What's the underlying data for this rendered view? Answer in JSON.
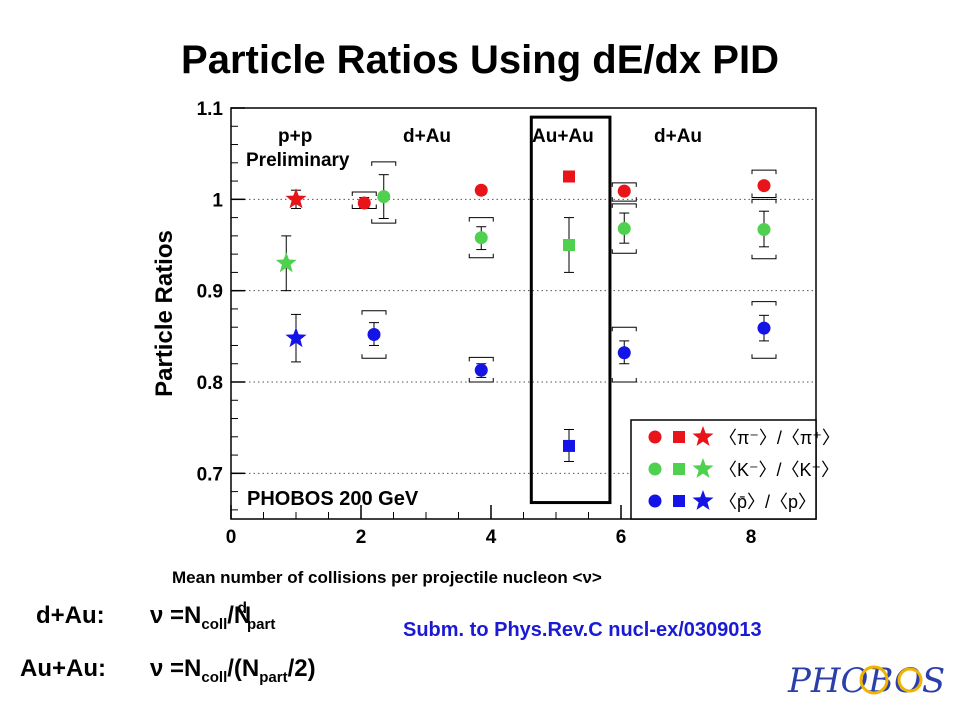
{
  "title": "Particle Ratios Using dE/dx PID",
  "chart_data": {
    "type": "scatter",
    "title": "Particle Ratios Using dE/dx PID",
    "xlabel": "Mean number of collisions per projectile nucleon <ν>",
    "ylabel": "Particle Ratios",
    "xlim": [
      0,
      9
    ],
    "ylim": [
      0.65,
      1.1
    ],
    "xticks": [
      "0",
      "2",
      "4",
      "6",
      "8"
    ],
    "yticks": [
      "0.7",
      "0.8",
      "0.9",
      "1",
      "1.1"
    ],
    "grid": "horizontal dotted",
    "annotations": [
      "p+p",
      "Preliminary",
      "d+Au",
      "Au+Au",
      "d+Au",
      "PHOBOS 200 GeV"
    ],
    "legend_position": "bottom-right",
    "legend_labels": [
      "〈π⁻〉/〈π⁺〉",
      "〈K⁻〉/〈K⁺〉",
      "〈p̄〉/〈p〉"
    ],
    "colors": {
      "pi": "#e8141a",
      "K": "#4fd14f",
      "p": "#1414e6",
      "frame": "#000000"
    },
    "series": [
      {
        "system": "p+p",
        "marker": "star",
        "points": [
          {
            "ratio": "pi",
            "x": 1.0,
            "y": 1.0,
            "bar": [
              0.99,
              1.01
            ]
          },
          {
            "ratio": "K",
            "x": 0.85,
            "y": 0.93,
            "bar": [
              0.9,
              0.96
            ]
          },
          {
            "ratio": "p",
            "x": 1.0,
            "y": 0.848,
            "bar": [
              0.822,
              0.874
            ]
          }
        ]
      },
      {
        "system": "d+Au",
        "marker": "circle",
        "points": [
          {
            "ratio": "pi",
            "x": 2.05,
            "y": 0.996,
            "bar": [
              0.991,
              1.002
            ],
            "sys": [
              0.99,
              1.008
            ]
          },
          {
            "ratio": "K",
            "x": 2.35,
            "y": 1.003,
            "bar": [
              0.979,
              1.027
            ],
            "sys": [
              0.974,
              1.041
            ]
          },
          {
            "ratio": "p",
            "x": 2.2,
            "y": 0.852,
            "bar": [
              0.84,
              0.865
            ],
            "sys": [
              0.826,
              0.878
            ]
          },
          {
            "ratio": "pi",
            "x": 3.85,
            "y": 1.01,
            "bar": [
              1.006,
              1.014
            ]
          },
          {
            "ratio": "K",
            "x": 3.85,
            "y": 0.958,
            "bar": [
              0.945,
              0.97
            ],
            "sys": [
              0.936,
              0.98
            ]
          },
          {
            "ratio": "p",
            "x": 3.85,
            "y": 0.813,
            "bar": [
              0.805,
              0.82
            ],
            "sys": [
              0.8,
              0.827
            ]
          },
          {
            "ratio": "pi",
            "x": 6.05,
            "y": 1.009,
            "bar": [
              1.005,
              1.013
            ],
            "sys": [
              0.998,
              1.018
            ]
          },
          {
            "ratio": "K",
            "x": 6.05,
            "y": 0.968,
            "bar": [
              0.952,
              0.985
            ],
            "sys": [
              0.941,
              0.995
            ]
          },
          {
            "ratio": "p",
            "x": 6.05,
            "y": 0.832,
            "bar": [
              0.82,
              0.845
            ],
            "sys": [
              0.8,
              0.86
            ]
          },
          {
            "ratio": "pi",
            "x": 8.2,
            "y": 1.015,
            "bar": [
              1.011,
              1.019
            ],
            "sys": [
              1.002,
              1.032
            ]
          },
          {
            "ratio": "K",
            "x": 8.2,
            "y": 0.967,
            "bar": [
              0.948,
              0.987
            ],
            "sys": [
              0.935,
              1.0
            ]
          },
          {
            "ratio": "p",
            "x": 8.2,
            "y": 0.859,
            "bar": [
              0.845,
              0.873
            ],
            "sys": [
              0.826,
              0.888
            ]
          }
        ]
      },
      {
        "system": "Au+Au",
        "marker": "square",
        "points": [
          {
            "ratio": "pi",
            "x": 5.2,
            "y": 1.025,
            "bar": [
              1.021,
              1.029
            ]
          },
          {
            "ratio": "K",
            "x": 5.2,
            "y": 0.95,
            "bar": [
              0.92,
              0.98
            ]
          },
          {
            "ratio": "p",
            "x": 5.2,
            "y": 0.73,
            "bar": [
              0.713,
              0.748
            ]
          }
        ]
      }
    ]
  },
  "formulas": {
    "dau_label": "d+Au:",
    "dau_nu": "ν",
    "dau_eq1": "=N",
    "dau_sub1": "coll",
    "dau_eq2": "/N",
    "dau_sup": "d",
    "dau_sub2": "part",
    "auau_label": "Au+Au:",
    "auau_nu": "ν",
    "auau_eq1": "=N",
    "auau_sub1": "coll",
    "auau_eq2": "/(N",
    "auau_sub2": "part",
    "auau_eq3": "/2)"
  },
  "reference": "Subm. to Phys.Rev.C nucl-ex/0309013",
  "logo_text": "PHOBOS"
}
